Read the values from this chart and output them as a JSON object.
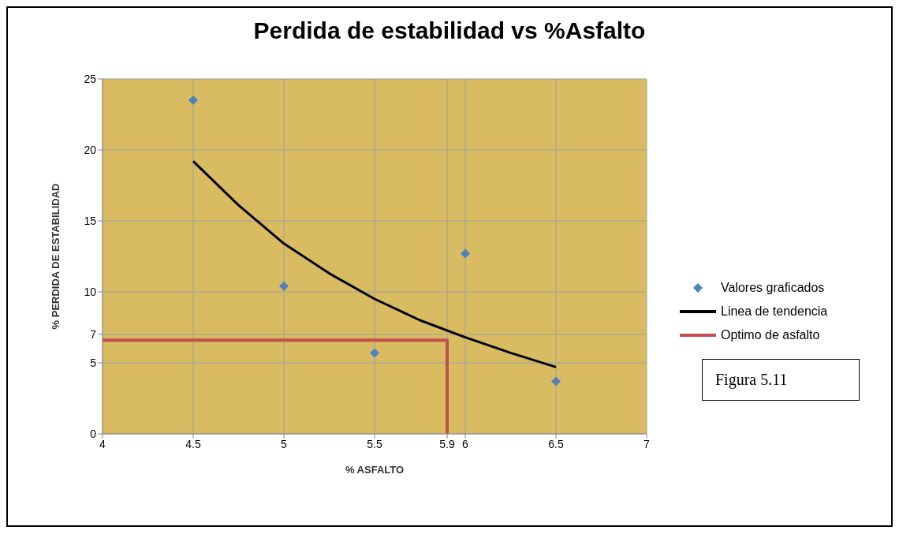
{
  "chart_data": {
    "type": "scatter",
    "title": "Perdida de estabilidad vs %Asfalto",
    "xlabel": "% ASFALTO",
    "ylabel": "% PERDIDA  DE ESTABILIDAD",
    "series": [
      {
        "name": "Valores graficados",
        "color": "#4f81bd",
        "marker": "diamond",
        "x": [
          4.5,
          5,
          5.5,
          6,
          6.5
        ],
        "values": [
          23.5,
          10.4,
          5.7,
          12.7,
          3.7
        ]
      },
      {
        "name": "Linea de tendencia",
        "type": "line",
        "color": "#000000",
        "marker": "none",
        "x": [
          4.5,
          4.75,
          5,
          5.25,
          5.5,
          5.75,
          6,
          6.25,
          6.5
        ],
        "values": [
          19.2,
          16.1,
          13.4,
          11.3,
          9.5,
          8.0,
          6.8,
          5.7,
          4.7
        ]
      },
      {
        "name": "Optimo de asfalto",
        "type": "line",
        "color": "#c0504d",
        "marker": "none",
        "x": [
          4,
          5.9,
          5.9
        ],
        "values": [
          6.6,
          6.6,
          0
        ]
      }
    ],
    "xlim": [
      4,
      7
    ],
    "xticks": [
      4,
      4.5,
      5,
      5.5,
      5.9,
      6,
      6.5,
      7
    ],
    "ylim": [
      0,
      25
    ],
    "yticks": [
      0,
      5,
      7,
      10,
      15,
      20,
      25
    ],
    "grid": true,
    "legend": "right",
    "annotations": [
      "Figura 5.11"
    ]
  }
}
